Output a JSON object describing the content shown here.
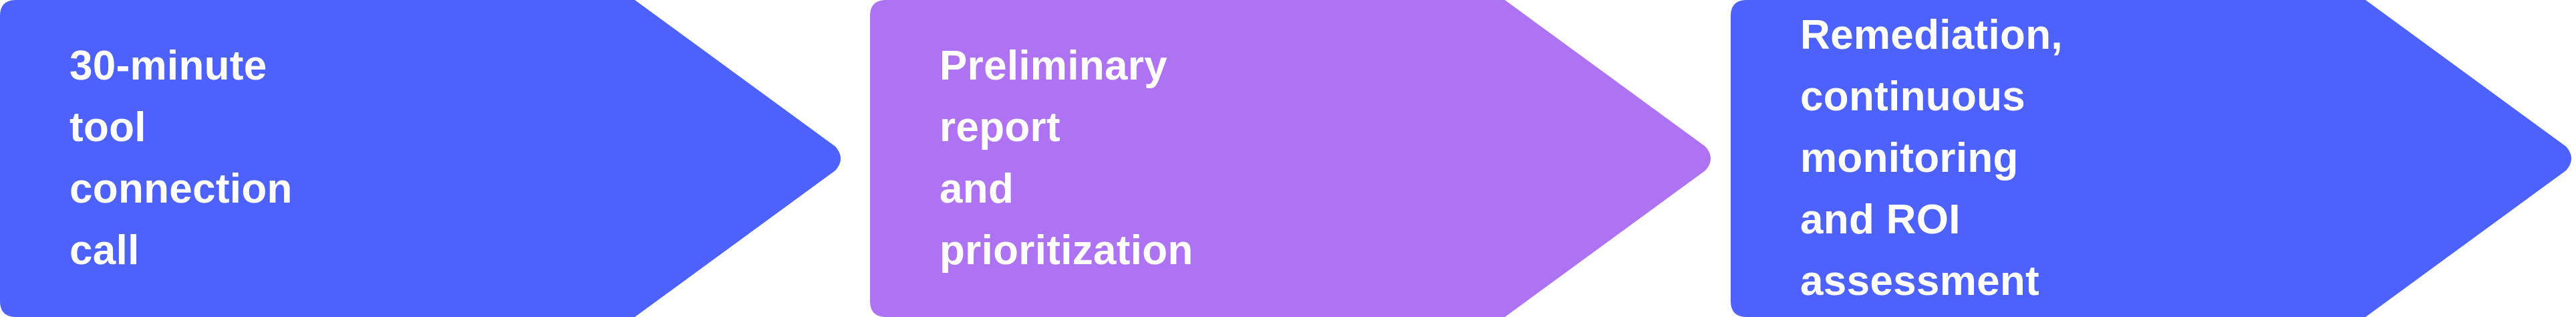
{
  "colors": {
    "background": "#ffffff",
    "step_blue": "#4d62fd",
    "step_purple": "#ae73f2",
    "text": "#ffffff"
  },
  "steps": [
    {
      "label": "30-minute tool\nconnection call",
      "color": "#4d62fd"
    },
    {
      "label": "Preliminary report\nand prioritization",
      "color": "#ae73f2"
    },
    {
      "label": "Remediation, continuous\nmonitoring and ROI\nassessment",
      "color": "#4d62fd"
    }
  ]
}
